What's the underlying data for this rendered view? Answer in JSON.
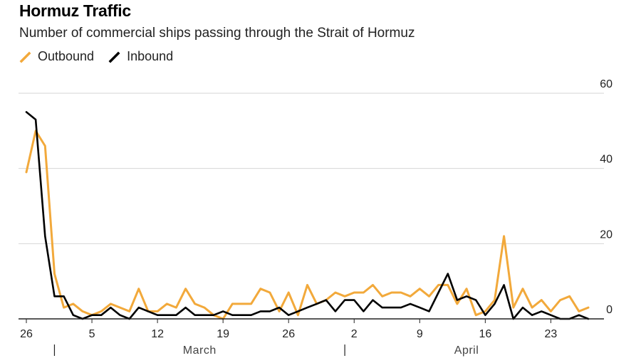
{
  "colors": {
    "outbound": "#F2A93B",
    "inbound": "#000000",
    "grid": "#d6d6d6",
    "axis": "#222222"
  },
  "chart_data": {
    "type": "line",
    "title": "Hormuz Traffic",
    "subtitle": "Number of commercial ships passing through the Strait of Hormuz",
    "xlabel": "",
    "ylabel": "",
    "ylim": [
      0,
      60
    ],
    "y_ticks": [
      0,
      20,
      40,
      60
    ],
    "grid": true,
    "legend_position": "top-left",
    "x": [
      "Feb 26",
      "Feb 27",
      "Feb 28",
      "Mar 1",
      "Mar 2",
      "Mar 3",
      "Mar 4",
      "Mar 5",
      "Mar 6",
      "Mar 7",
      "Mar 8",
      "Mar 9",
      "Mar 10",
      "Mar 11",
      "Mar 12",
      "Mar 13",
      "Mar 14",
      "Mar 15",
      "Mar 16",
      "Mar 17",
      "Mar 18",
      "Mar 19",
      "Mar 20",
      "Mar 21",
      "Mar 22",
      "Mar 23",
      "Mar 24",
      "Mar 25",
      "Mar 26",
      "Mar 27",
      "Mar 28",
      "Mar 29",
      "Mar 30",
      "Mar 31",
      "Apr 1",
      "Apr 2",
      "Apr 3",
      "Apr 4",
      "Apr 5",
      "Apr 6",
      "Apr 7",
      "Apr 8",
      "Apr 9",
      "Apr 10",
      "Apr 11",
      "Apr 12",
      "Apr 13",
      "Apr 14",
      "Apr 15",
      "Apr 16",
      "Apr 17",
      "Apr 18",
      "Apr 19",
      "Apr 20",
      "Apr 21",
      "Apr 22",
      "Apr 23",
      "Apr 24",
      "Apr 25",
      "Apr 26",
      "Apr 27"
    ],
    "x_tick_labels": [
      {
        "index": 0,
        "label": "26"
      },
      {
        "index": 7,
        "label": "5"
      },
      {
        "index": 14,
        "label": "12"
      },
      {
        "index": 21,
        "label": "19"
      },
      {
        "index": 28,
        "label": "26"
      },
      {
        "index": 35,
        "label": "2"
      },
      {
        "index": 42,
        "label": "9"
      },
      {
        "index": 49,
        "label": "16"
      },
      {
        "index": 56,
        "label": "23"
      }
    ],
    "month_labels": [
      {
        "label": "March",
        "start_index": 3,
        "end_index": 34
      },
      {
        "label": "April",
        "start_index": 34,
        "end_index": 60
      }
    ],
    "series": [
      {
        "name": "Outbound",
        "values": [
          39,
          50,
          46,
          12,
          3,
          4,
          2,
          1,
          2,
          4,
          3,
          2,
          8,
          2,
          2,
          4,
          3,
          8,
          4,
          3,
          1,
          0,
          4,
          4,
          4,
          8,
          7,
          2,
          7,
          1,
          9,
          4,
          5,
          7,
          6,
          7,
          7,
          9,
          6,
          7,
          7,
          6,
          8,
          6,
          9,
          9,
          4,
          8,
          1,
          2,
          5,
          22,
          3,
          8,
          3,
          5,
          2,
          5,
          6,
          2,
          3
        ]
      },
      {
        "name": "Inbound",
        "values": [
          55,
          53,
          22,
          6,
          6,
          1,
          0,
          1,
          1,
          3,
          1,
          0,
          3,
          2,
          1,
          1,
          1,
          3,
          1,
          1,
          1,
          2,
          1,
          1,
          1,
          2,
          2,
          3,
          1,
          2,
          3,
          4,
          5,
          2,
          5,
          5,
          2,
          5,
          3,
          3,
          3,
          4,
          3,
          2,
          7,
          12,
          5,
          6,
          5,
          1,
          4,
          9,
          0,
          3,
          1,
          2,
          1,
          0,
          0,
          1,
          0
        ]
      }
    ]
  }
}
